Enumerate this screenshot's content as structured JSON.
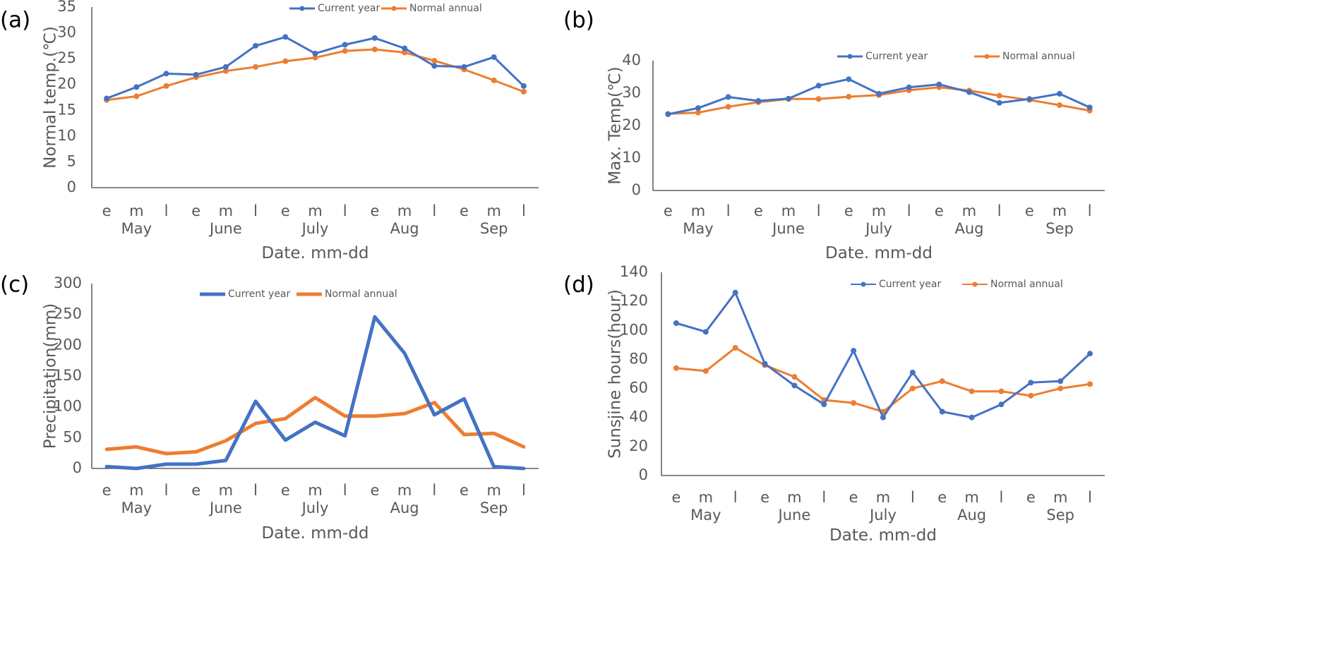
{
  "colors": {
    "current": "#4472C4",
    "normal": "#ED7D31",
    "axis": "#595959"
  },
  "chart_data": [
    {
      "panel": "(a)",
      "type": "line",
      "markers": true,
      "ylabel": "Normal temp.(℃)",
      "xlabel": "Date. mm-dd",
      "ylim": [
        0,
        35
      ],
      "yticks": [
        0,
        5,
        10,
        15,
        20,
        25,
        30,
        35
      ],
      "categories": [
        "e",
        "m",
        "l",
        "e",
        "m",
        "l",
        "e",
        "m",
        "l",
        "e",
        "m",
        "l",
        "e",
        "m",
        "l"
      ],
      "groups": [
        "May",
        "June",
        "July",
        "Aug",
        "Sep"
      ],
      "legend_position": "top-center",
      "series": [
        {
          "name": "Current year",
          "values": [
            17.3,
            19.5,
            22.1,
            21.9,
            23.4,
            27.5,
            29.2,
            26.0,
            27.7,
            29.0,
            27.0,
            23.6,
            23.4,
            25.3,
            19.7
          ]
        },
        {
          "name": "Normal annual",
          "values": [
            17.0,
            17.7,
            19.7,
            21.4,
            22.6,
            23.4,
            24.5,
            25.2,
            26.5,
            26.8,
            26.2,
            24.6,
            22.9,
            20.8,
            18.6
          ]
        }
      ]
    },
    {
      "panel": "(b)",
      "type": "line",
      "markers": true,
      "ylabel": "Max. Temp(℃)",
      "xlabel": "Date. mm-dd",
      "ylim": [
        0,
        40
      ],
      "yticks": [
        0,
        10,
        20,
        30,
        40
      ],
      "categories": [
        "e",
        "m",
        "l",
        "e",
        "m",
        "l",
        "e",
        "m",
        "l",
        "e",
        "m",
        "l",
        "e",
        "m",
        "l"
      ],
      "groups": [
        "May",
        "June",
        "July",
        "Aug",
        "Sep"
      ],
      "legend_position": "top-right",
      "series": [
        {
          "name": "Current year",
          "values": [
            23.5,
            25.4,
            28.8,
            27.6,
            28.3,
            32.3,
            34.3,
            29.8,
            31.8,
            32.7,
            30.3,
            27.0,
            28.2,
            29.8,
            25.6
          ]
        },
        {
          "name": "Normal annual",
          "values": [
            23.6,
            24.0,
            25.8,
            27.2,
            28.2,
            28.2,
            28.9,
            29.4,
            30.9,
            31.8,
            30.8,
            29.2,
            27.9,
            26.3,
            24.6
          ]
        }
      ]
    },
    {
      "panel": "(c)",
      "type": "line",
      "markers": false,
      "ylabel": "Precipitation(mm)",
      "xlabel": "Date. mm-dd",
      "ylim": [
        0,
        300
      ],
      "yticks": [
        0,
        50,
        100,
        150,
        200,
        250,
        300
      ],
      "categories": [
        "e",
        "m",
        "l",
        "e",
        "m",
        "l",
        "e",
        "m",
        "l",
        "e",
        "m",
        "l",
        "e",
        "m",
        "l"
      ],
      "groups": [
        "May",
        "June",
        "July",
        "Aug",
        "Sep"
      ],
      "legend_position": "top-center",
      "series": [
        {
          "name": "Current year",
          "values": [
            3,
            0,
            7,
            7,
            13,
            109,
            46,
            75,
            53,
            246,
            187,
            87,
            113,
            3,
            0
          ]
        },
        {
          "name": "Normal annual",
          "values": [
            31,
            35,
            24,
            27,
            45,
            73,
            81,
            115,
            85,
            85,
            89,
            107,
            55,
            57,
            35
          ]
        }
      ]
    },
    {
      "panel": "(d)",
      "type": "line",
      "markers": true,
      "ylabel": "Sunsjine hours(hour)",
      "xlabel": "Date. mm-dd",
      "ylim": [
        0,
        140
      ],
      "yticks": [
        0,
        20,
        40,
        60,
        80,
        100,
        120,
        140
      ],
      "categories": [
        "e",
        "m",
        "l",
        "e",
        "m",
        "l",
        "e",
        "m",
        "l",
        "e",
        "m",
        "l",
        "e",
        "m",
        "l"
      ],
      "groups": [
        "May",
        "June",
        "July",
        "Aug",
        "Sep"
      ],
      "legend_position": "top-center",
      "series": [
        {
          "name": "Current year",
          "values": [
            105,
            99,
            126,
            77,
            62,
            49,
            86,
            40,
            71,
            44,
            40,
            49,
            64,
            65,
            84
          ]
        },
        {
          "name": "Normal annual",
          "values": [
            74,
            72,
            88,
            76,
            68,
            52,
            50,
            44,
            60,
            65,
            58,
            58,
            55,
            60,
            63
          ]
        }
      ]
    }
  ]
}
